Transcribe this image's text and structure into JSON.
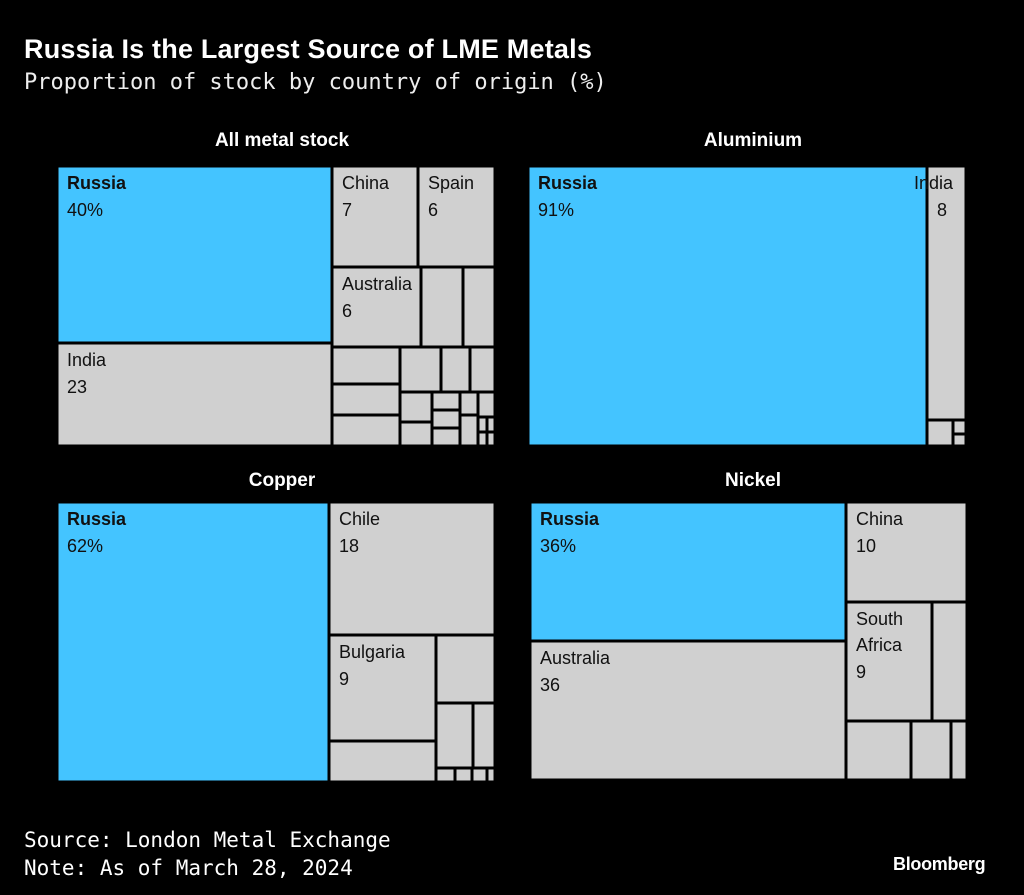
{
  "title": "Russia Is the Largest Source of LME Metals",
  "subtitle": "Proportion of stock by country of origin (%)",
  "source": "Source: London Metal Exchange",
  "note": "Note: As of March 28, 2024",
  "logo": "Bloomberg",
  "colors": {
    "highlight": "#44c4ff",
    "other": "#d0d0d0",
    "background": "#000000",
    "border": "#000000"
  },
  "chart_data": [
    {
      "type": "treemap",
      "title": "All metal stock",
      "items": [
        {
          "label": "Russia",
          "value": "40%"
        },
        {
          "label": "India",
          "value": "23"
        },
        {
          "label": "China",
          "value": "7"
        },
        {
          "label": "Spain",
          "value": "6"
        },
        {
          "label": "Australia",
          "value": "6"
        }
      ]
    },
    {
      "type": "treemap",
      "title": "Aluminium",
      "items": [
        {
          "label": "Russia",
          "value": "91%"
        },
        {
          "label": "India",
          "value": "8"
        }
      ]
    },
    {
      "type": "treemap",
      "title": "Copper",
      "items": [
        {
          "label": "Russia",
          "value": "62%"
        },
        {
          "label": "Chile",
          "value": "18"
        },
        {
          "label": "Bulgaria",
          "value": "9"
        }
      ]
    },
    {
      "type": "treemap",
      "title": "Nickel",
      "items": [
        {
          "label": "Russia",
          "value": "36%"
        },
        {
          "label": "Australia",
          "value": "36"
        },
        {
          "label": "China",
          "value": "10"
        },
        {
          "label": "South Africa",
          "value": "9"
        }
      ]
    }
  ]
}
